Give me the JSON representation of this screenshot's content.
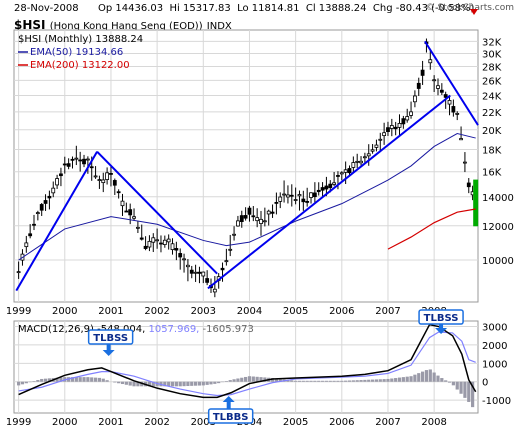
{
  "header": {
    "date": "28-Nov-2008",
    "op_label": "Op",
    "op_value": "14436.03",
    "hi_label": "Hi",
    "hi_value": "15317.83",
    "lo_label": "Lo",
    "lo_value": "11814.81",
    "cl_label": "Cl",
    "cl_value": "13888.24",
    "chg_label": "Chg",
    "chg_value": "-80.43 (-0.58%)",
    "copyright": "© StockCharts.com"
  },
  "title": {
    "symbol": "$HSI",
    "name": "(Hong Kong Hang Seng (EOD))",
    "exchange": "INDX"
  },
  "legend": [
    {
      "text": "$HSI (Monthly) 13888.24",
      "color": "#000000"
    },
    {
      "text": "EMA(50) 19134.66",
      "color": "#1a1aa0"
    },
    {
      "text": "EMA(200) 13122.00",
      "color": "#d40000"
    }
  ],
  "macd_legend": {
    "label": "MACD(12,26,9)",
    "v1": "-548.004",
    "v2": "1057.969",
    "v3": "-1605.973"
  },
  "annotations": {
    "tlbss_1": "TLBSS",
    "tlbbs_1": "TLBBS",
    "tlbss_2": "TLBSS"
  },
  "colors": {
    "price": "#000000",
    "ema50": "#1a1aa0",
    "ema200": "#d40000",
    "trendline": "#0000ee",
    "macd": "#000000",
    "signal": "#8080ff",
    "histogram": "#9a9aa8",
    "grid": "#d8d8d8",
    "arrow": "#1a6fe0",
    "last_bar": "#00aa00"
  },
  "chart_data": {
    "type": "line",
    "title": "$HSI (Hong Kong Hang Seng (EOD)) INDX",
    "y_scale": "log",
    "ylim": [
      8000,
      34000
    ],
    "yticks": [
      10000,
      12000,
      14000,
      16000,
      18000,
      20000,
      22000,
      24000,
      26000,
      28000,
      30000,
      32000
    ],
    "ytick_labels": [
      "10000",
      "12000",
      "14000",
      "16K",
      "18K",
      "20K",
      "22K",
      "24K",
      "26K",
      "28K",
      "30K",
      "32K"
    ],
    "xtick_labels": [
      "1999",
      "2000",
      "2001",
      "2002",
      "2003",
      "2004",
      "2005",
      "2006",
      "2007",
      "2008"
    ],
    "x_range_years": [
      1998.9,
      2008.95
    ],
    "series": [
      {
        "name": "$HSI (Monthly)",
        "x": [
          1999.0,
          1999.25,
          1999.5,
          1999.75,
          2000.0,
          2000.25,
          2000.5,
          2000.75,
          2001.0,
          2001.25,
          2001.5,
          2001.75,
          2002.0,
          2002.25,
          2002.5,
          2002.75,
          2003.0,
          2003.25,
          2003.5,
          2003.75,
          2004.0,
          2004.25,
          2004.5,
          2004.75,
          2005.0,
          2005.25,
          2005.5,
          2005.75,
          2006.0,
          2006.25,
          2006.5,
          2006.75,
          2007.0,
          2007.25,
          2007.5,
          2007.75,
          2007.83,
          2008.0,
          2008.25,
          2008.5,
          2008.75,
          2008.9
        ],
        "y": [
          9500,
          11500,
          13200,
          14500,
          16500,
          17200,
          16800,
          15200,
          15800,
          13500,
          12600,
          10800,
          11200,
          11000,
          10200,
          9300,
          9200,
          8600,
          10000,
          12200,
          13000,
          12200,
          13000,
          14300,
          14000,
          13800,
          14500,
          15000,
          15600,
          16500,
          17300,
          18500,
          20000,
          20500,
          22000,
          27000,
          31500,
          26000,
          24000,
          21500,
          15000,
          13888
        ]
      },
      {
        "name": "EMA(50)",
        "x": [
          1999.0,
          2000.0,
          2001.0,
          2002.0,
          2003.0,
          2003.5,
          2004.0,
          2005.0,
          2006.0,
          2007.0,
          2007.5,
          2008.0,
          2008.5,
          2008.9
        ],
        "y": [
          10000,
          11800,
          12600,
          12100,
          11100,
          10800,
          11000,
          12300,
          13500,
          15300,
          16500,
          18300,
          19600,
          19134
        ]
      },
      {
        "name": "EMA(200)",
        "x": [
          2007.0,
          2007.5,
          2008.0,
          2008.5,
          2008.9
        ],
        "y": [
          10600,
          11300,
          12200,
          12900,
          13122
        ]
      }
    ],
    "macd": {
      "ylim": [
        -1700,
        3300
      ],
      "yticks": [
        -1000,
        0,
        1000,
        2000,
        3000
      ],
      "ytick_labels": [
        "-1000",
        "0",
        "1000",
        "2000",
        "3000"
      ],
      "x": [
        1999.0,
        1999.5,
        2000.0,
        2000.5,
        2000.8,
        2001.0,
        2001.5,
        2002.0,
        2002.5,
        2003.0,
        2003.3,
        2003.6,
        2004.0,
        2004.5,
        2005.0,
        2005.5,
        2006.0,
        2006.5,
        2007.0,
        2007.5,
        2007.9,
        2008.1,
        2008.4,
        2008.6,
        2008.75,
        2008.9
      ],
      "macd": [
        -700,
        -150,
        350,
        650,
        750,
        550,
        50,
        -350,
        -650,
        -850,
        -850,
        -600,
        -100,
        150,
        200,
        250,
        300,
        400,
        600,
        1200,
        3100,
        3000,
        2500,
        1500,
        100,
        -548
      ],
      "signal": [
        -500,
        -300,
        100,
        400,
        550,
        550,
        300,
        -100,
        -400,
        -650,
        -750,
        -700,
        -400,
        -50,
        150,
        200,
        250,
        300,
        450,
        900,
        2400,
        2700,
        2650,
        2200,
        1200,
        1058
      ],
      "histogram": [
        -200,
        150,
        250,
        250,
        200,
        0,
        -250,
        -250,
        -250,
        -200,
        -100,
        100,
        300,
        200,
        50,
        50,
        50,
        100,
        150,
        300,
        700,
        300,
        -150,
        -700,
        -1100,
        -1606
      ]
    }
  }
}
